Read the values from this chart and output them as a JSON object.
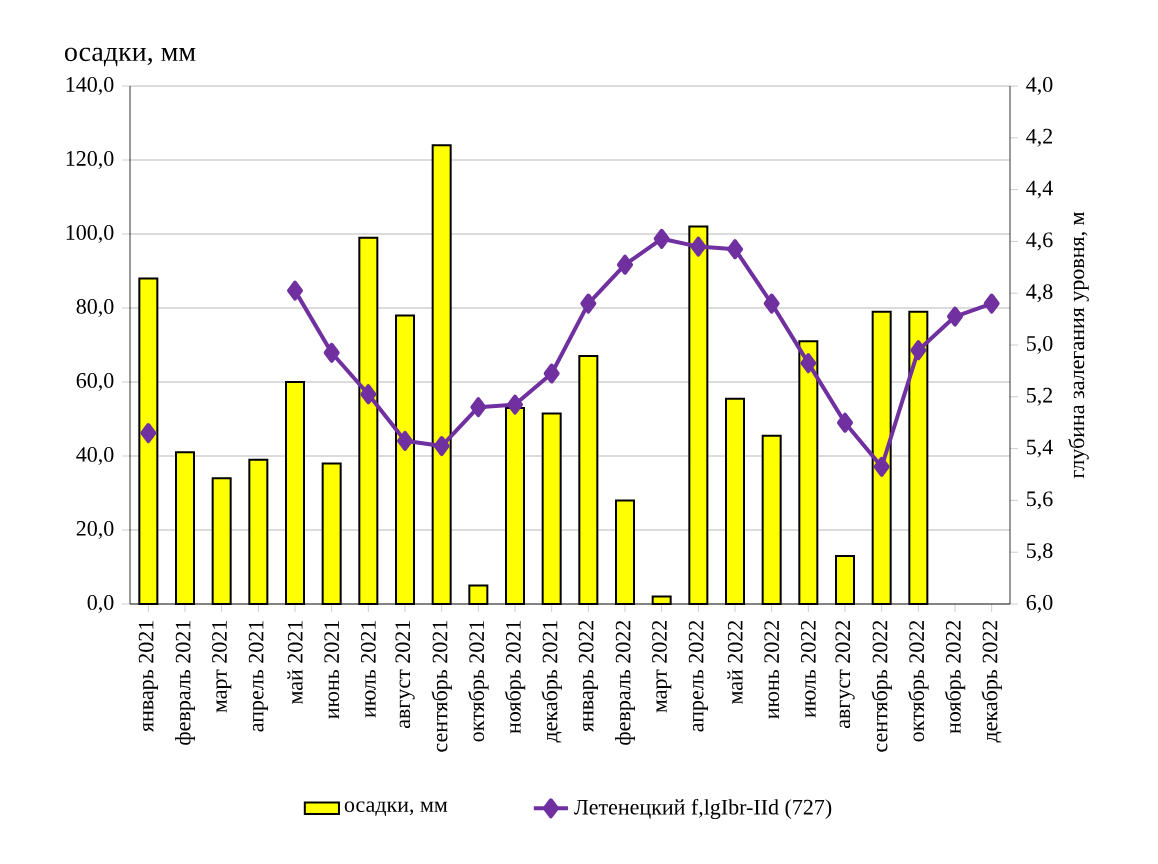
{
  "chart_data": {
    "type": "bar",
    "ylabel": "осадки, мм",
    "y2label": "глубина залегания уровня, м",
    "categories": [
      "январь 2021",
      "февраль 2021",
      "март 2021",
      "апрель 2021",
      "май 2021",
      "июнь 2021",
      "июль 2021",
      "август 2021",
      "сентябрь 2021",
      "октябрь 2021",
      "ноябрь 2021",
      "декабрь 2021",
      "январь 2022",
      "февраль 2022",
      "март 2022",
      "апрель 2022",
      "май 2022",
      "июнь 2022",
      "июль 2022",
      "август 2022",
      "сентябрь 2022",
      "октябрь 2022",
      "ноябрь 2022",
      "декабрь 2022"
    ],
    "series": [
      {
        "name": "осадки, мм",
        "color": "#ffff00",
        "values": [
          88,
          41,
          34,
          39,
          60,
          38,
          99,
          78,
          124,
          5,
          53,
          51.5,
          67,
          28,
          2,
          102,
          55.5,
          45.5,
          71,
          13,
          79,
          79,
          null,
          null
        ]
      },
      {
        "name": "Летенецкий f,lgIbr-IId  (727)",
        "type": "line",
        "axis": "y2",
        "color": "#7030a0",
        "marker": "diamond",
        "values": [
          5.34,
          null,
          null,
          null,
          4.79,
          5.03,
          5.19,
          5.37,
          5.39,
          5.24,
          5.23,
          5.11,
          4.84,
          4.69,
          4.59,
          4.62,
          4.63,
          4.84,
          5.07,
          5.3,
          5.47,
          5.02,
          4.89,
          4.84
        ]
      }
    ],
    "ylim": [
      0,
      140
    ],
    "yticks": [
      {
        "value": 0,
        "label": "0,0"
      },
      {
        "value": 20,
        "label": "20,0"
      },
      {
        "value": 40,
        "label": "40,0"
      },
      {
        "value": 60,
        "label": "60,0"
      },
      {
        "value": 80,
        "label": "80,0"
      },
      {
        "value": 100,
        "label": "100,0"
      },
      {
        "value": 120,
        "label": "120,0"
      },
      {
        "value": 140,
        "label": "140,0"
      }
    ],
    "y2lim": [
      6.0,
      4.0
    ],
    "y2ticks": [
      {
        "value": 4.0,
        "label": "4,0"
      },
      {
        "value": 4.2,
        "label": "4,2"
      },
      {
        "value": 4.4,
        "label": "4,4"
      },
      {
        "value": 4.6,
        "label": "4,6"
      },
      {
        "value": 4.8,
        "label": "4,8"
      },
      {
        "value": 5.0,
        "label": "5,0"
      },
      {
        "value": 5.2,
        "label": "5,2"
      },
      {
        "value": 5.4,
        "label": "5,4"
      },
      {
        "value": 5.6,
        "label": "5,6"
      },
      {
        "value": 5.8,
        "label": "5,8"
      },
      {
        "value": 6.0,
        "label": "6,0"
      }
    ],
    "grid": "y",
    "legend": "bottom"
  }
}
